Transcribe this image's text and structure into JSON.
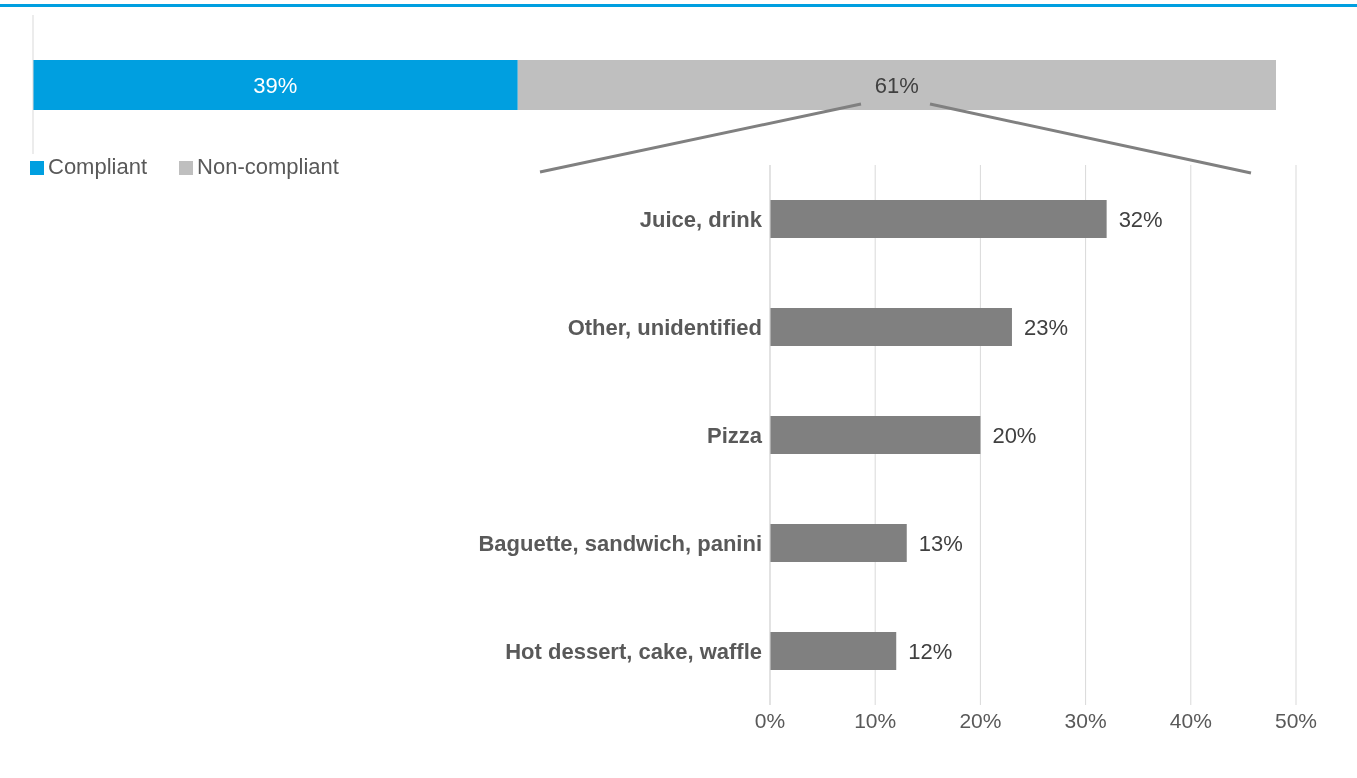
{
  "chart_data": [
    {
      "type": "bar",
      "orientation": "horizontal",
      "stacked": true,
      "categories": [
        null
      ],
      "legend": "bottom left",
      "series": [
        {
          "name": "Compliant",
          "color": "#009fe0",
          "values": [
            39
          ],
          "value_labels": [
            "39%"
          ]
        },
        {
          "name": "Non-compliant",
          "color": "#bfbfbf",
          "values": [
            61
          ],
          "value_labels": [
            "61%"
          ]
        }
      ]
    },
    {
      "type": "bar",
      "orientation": "horizontal",
      "categories": [
        "Juice, drink",
        "Other, unidentified",
        "Pizza",
        "Baguette, sandwich, panini",
        "Hot dessert, cake, waffle"
      ],
      "values": [
        32,
        23,
        20,
        13,
        12
      ],
      "value_labels": [
        "32%",
        "23%",
        "20%",
        "13%",
        "12%"
      ],
      "color": "#808080",
      "xlim": [
        0,
        50
      ],
      "xticks": [
        {
          "value": 0,
          "label": "0%"
        },
        {
          "value": 10,
          "label": "10%"
        },
        {
          "value": 20,
          "label": "20%"
        },
        {
          "value": 30,
          "label": "30%"
        },
        {
          "value": 40,
          "label": "40%"
        },
        {
          "value": 50,
          "label": "50%"
        }
      ],
      "grid": "x"
    }
  ]
}
